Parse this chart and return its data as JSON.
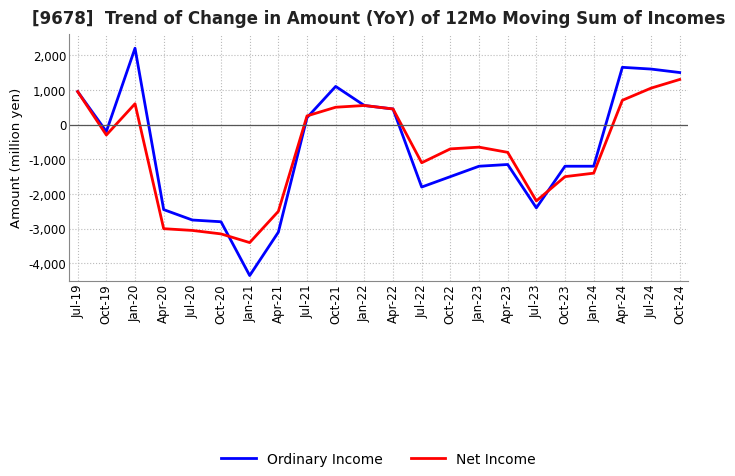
{
  "title": "[9678]  Trend of Change in Amount (YoY) of 12Mo Moving Sum of Incomes",
  "ylabel": "Amount (million yen)",
  "ordinary_income": {
    "labels": [
      "Jul-19",
      "Oct-19",
      "Jan-20",
      "Apr-20",
      "Jul-20",
      "Oct-20",
      "Jan-21",
      "Apr-21",
      "Jul-21",
      "Oct-21",
      "Jan-22",
      "Apr-22",
      "Jul-22",
      "Oct-22",
      "Jan-23",
      "Apr-23",
      "Jul-23",
      "Oct-23",
      "Jan-24",
      "Apr-24",
      "Jul-24",
      "Oct-24"
    ],
    "values": [
      950,
      -200,
      2200,
      -2450,
      -2750,
      -2800,
      -4350,
      -3100,
      200,
      1100,
      550,
      450,
      -1800,
      -1500,
      -1200,
      -1150,
      -2400,
      -1200,
      -1200,
      1650,
      1600,
      1500
    ]
  },
  "net_income": {
    "labels": [
      "Jul-19",
      "Oct-19",
      "Jan-20",
      "Apr-20",
      "Jul-20",
      "Oct-20",
      "Jan-21",
      "Apr-21",
      "Jul-21",
      "Oct-21",
      "Jan-22",
      "Apr-22",
      "Jul-22",
      "Oct-22",
      "Jan-23",
      "Apr-23",
      "Jul-23",
      "Oct-23",
      "Jan-24",
      "Apr-24",
      "Jul-24",
      "Oct-24"
    ],
    "values": [
      950,
      -300,
      600,
      -3000,
      -3050,
      -3150,
      -3400,
      -2500,
      250,
      500,
      550,
      450,
      -1100,
      -700,
      -650,
      -800,
      -2200,
      -1500,
      -1400,
      700,
      1050,
      1300
    ]
  },
  "ordinary_color": "#0000FF",
  "net_color": "#FF0000",
  "background_color": "#FFFFFF",
  "grid_color": "#BBBBBB",
  "ylim": [
    -4500,
    2600
  ],
  "yticks": [
    -4000,
    -3000,
    -2000,
    -1000,
    0,
    1000,
    2000
  ],
  "title_fontsize": 12,
  "axis_fontsize": 9.5,
  "tick_fontsize": 8.5,
  "legend_fontsize": 10
}
